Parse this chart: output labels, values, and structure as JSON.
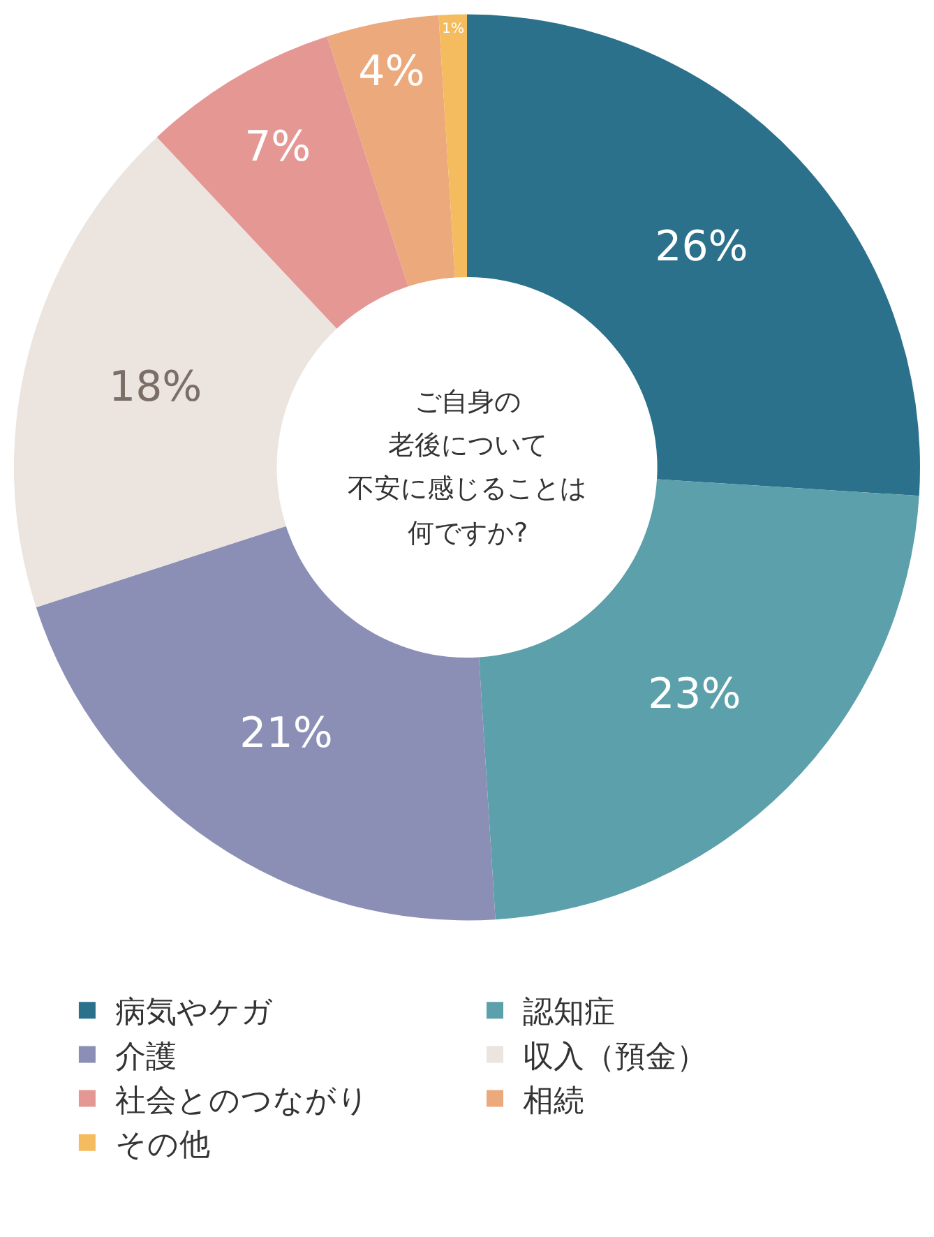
{
  "chart_data": {
    "type": "donut",
    "annotations": [
      "ご自身の",
      "老後について",
      "不安に感じることは",
      "何ですか?"
    ],
    "categories": [
      "病気やケガ",
      "認知症",
      "介護",
      "収入（預金）",
      "社会とのつながり",
      "相続",
      "その他"
    ],
    "values": [
      26,
      23,
      21,
      18,
      7,
      4,
      1
    ],
    "value_labels": [
      "26%",
      "23%",
      "21%",
      "18%",
      "7%",
      "4%",
      "1%"
    ],
    "colors": [
      "#2b718c",
      "#5ba0aa",
      "#8b8fb6",
      "#ebe4df",
      "#e59794",
      "#eba97c",
      "#f5bb5f"
    ],
    "legend": "bottom"
  }
}
